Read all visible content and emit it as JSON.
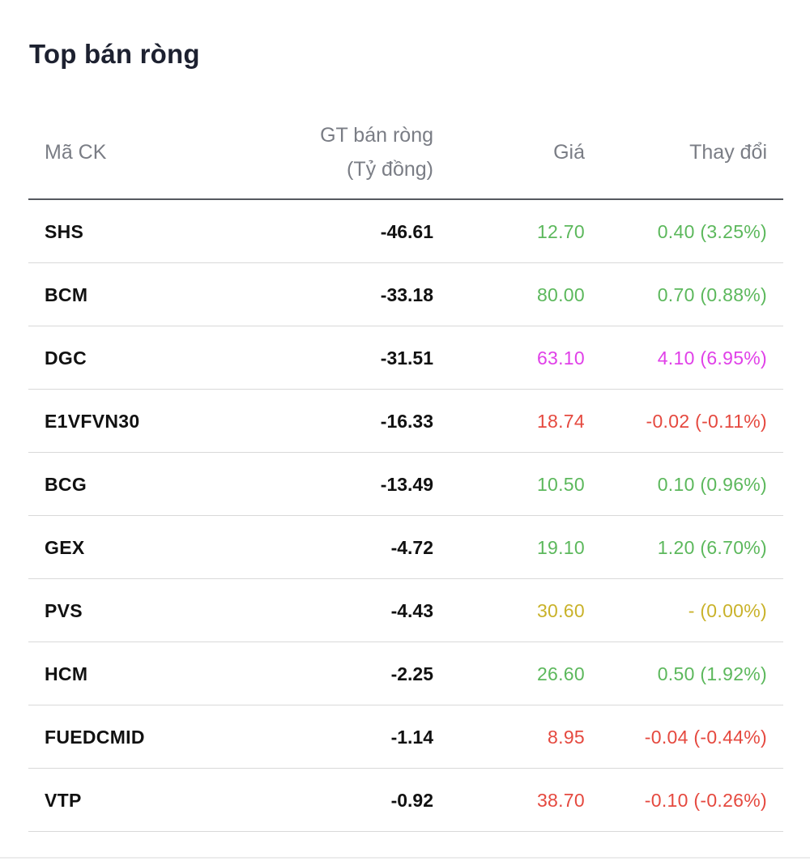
{
  "widget": {
    "title": "Top bán ròng"
  },
  "table": {
    "headers": {
      "symbol": "Mã CK",
      "net_value_line1": "GT bán ròng",
      "net_value_line2": "(Tỷ đồng)",
      "price": "Giá",
      "change": "Thay đổi"
    },
    "colors": {
      "up": "#5cb85c",
      "ceiling": "#e040e8",
      "down": "#e5493f",
      "reference": "#c9b22a"
    },
    "rows": [
      {
        "symbol": "SHS",
        "net_value": "-46.61",
        "price": "12.70",
        "change": "0.40 (3.25%)",
        "status": "up"
      },
      {
        "symbol": "BCM",
        "net_value": "-33.18",
        "price": "80.00",
        "change": "0.70 (0.88%)",
        "status": "up"
      },
      {
        "symbol": "DGC",
        "net_value": "-31.51",
        "price": "63.10",
        "change": "4.10 (6.95%)",
        "status": "ceiling"
      },
      {
        "symbol": "E1VFVN30",
        "net_value": "-16.33",
        "price": "18.74",
        "change": "-0.02 (-0.11%)",
        "status": "down"
      },
      {
        "symbol": "BCG",
        "net_value": "-13.49",
        "price": "10.50",
        "change": "0.10 (0.96%)",
        "status": "up"
      },
      {
        "symbol": "GEX",
        "net_value": "-4.72",
        "price": "19.10",
        "change": "1.20 (6.70%)",
        "status": "up"
      },
      {
        "symbol": "PVS",
        "net_value": "-4.43",
        "price": "30.60",
        "change": "- (0.00%)",
        "status": "reference"
      },
      {
        "symbol": "HCM",
        "net_value": "-2.25",
        "price": "26.60",
        "change": "0.50 (1.92%)",
        "status": "up"
      },
      {
        "symbol": "FUEDCMID",
        "net_value": "-1.14",
        "price": "8.95",
        "change": "-0.04 (-0.44%)",
        "status": "down"
      },
      {
        "symbol": "VTP",
        "net_value": "-0.92",
        "price": "38.70",
        "change": "-0.10 (-0.26%)",
        "status": "down"
      }
    ]
  }
}
